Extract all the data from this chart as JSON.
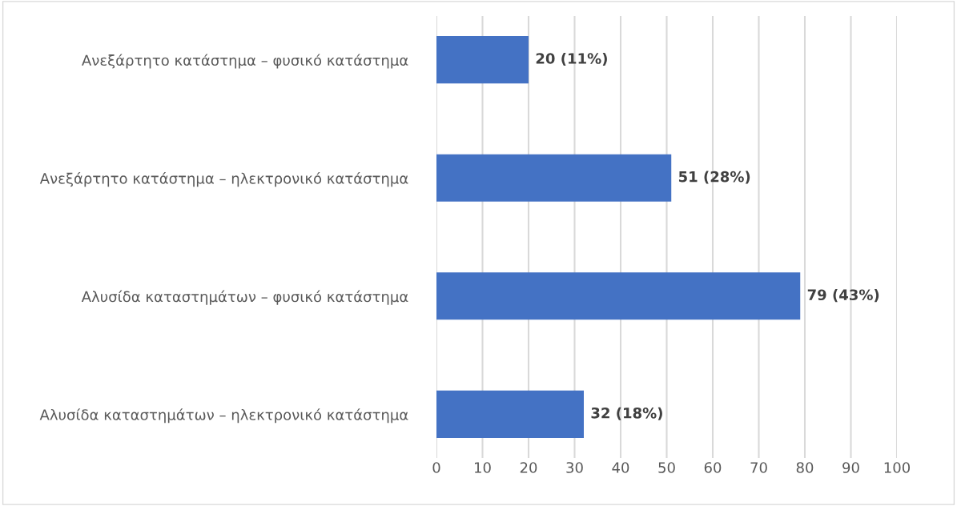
{
  "chart_data": {
    "type": "bar",
    "orientation": "horizontal",
    "categories": [
      "Ανεξάρτητο κατάστημα – φυσικό κατάστημα",
      "Ανεξάρτητο κατάστημα – ηλεκτρονικό κατάστημα",
      "Αλυσίδα καταστημάτων – φυσικό κατάστημα",
      "Αλυσίδα καταστημάτων – ηλεκτρονικό κατάστημα"
    ],
    "values": [
      20,
      51,
      79,
      32
    ],
    "value_labels": [
      "20 (11%)",
      "51 (28%)",
      "79 (43%)",
      "32 (18%)"
    ],
    "color": "#4472c4",
    "xlim": [
      0,
      100
    ],
    "xticks": [
      0,
      10,
      20,
      30,
      40,
      50,
      60,
      70,
      80,
      90,
      100
    ],
    "grid": "x"
  }
}
